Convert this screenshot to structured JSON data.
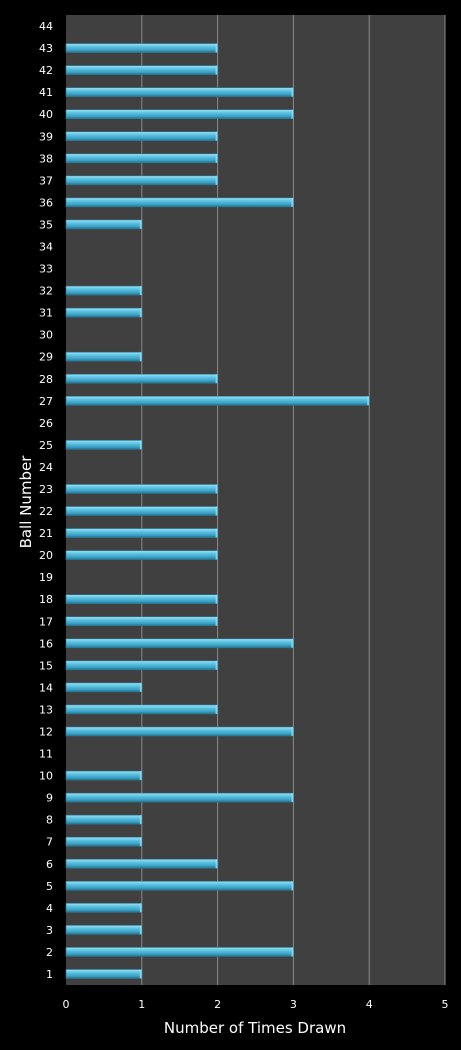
{
  "chart_data": {
    "type": "bar",
    "orientation": "horizontal",
    "xlabel": "Number of Times Drawn",
    "ylabel": "Ball Number",
    "xlim": [
      0,
      5
    ],
    "xticks": [
      "0",
      "1",
      "2",
      "3",
      "4",
      "5"
    ],
    "grid": true,
    "legend": "none",
    "colors": {
      "background": "#000000",
      "plot_area": "#404040",
      "bar": "#4ab3d6",
      "bar_highlight": "#8fdcf2",
      "bar_shadow": "#2a7a96",
      "gridline": "#8a8a8a",
      "text": "#ffffff"
    },
    "categories": [
      "1",
      "2",
      "3",
      "4",
      "5",
      "6",
      "7",
      "8",
      "9",
      "10",
      "11",
      "12",
      "13",
      "14",
      "15",
      "16",
      "17",
      "18",
      "19",
      "20",
      "21",
      "22",
      "23",
      "24",
      "25",
      "26",
      "27",
      "28",
      "29",
      "30",
      "31",
      "32",
      "33",
      "34",
      "35",
      "36",
      "37",
      "38",
      "39",
      "40",
      "41",
      "42",
      "43",
      "44"
    ],
    "values": [
      1,
      3,
      1,
      1,
      3,
      2,
      1,
      1,
      3,
      1,
      0,
      3,
      2,
      1,
      2,
      3,
      2,
      2,
      0,
      2,
      2,
      2,
      2,
      0,
      1,
      0,
      4,
      2,
      1,
      0,
      1,
      1,
      0,
      0,
      1,
      3,
      2,
      2,
      2,
      3,
      3,
      2,
      2,
      0
    ]
  }
}
